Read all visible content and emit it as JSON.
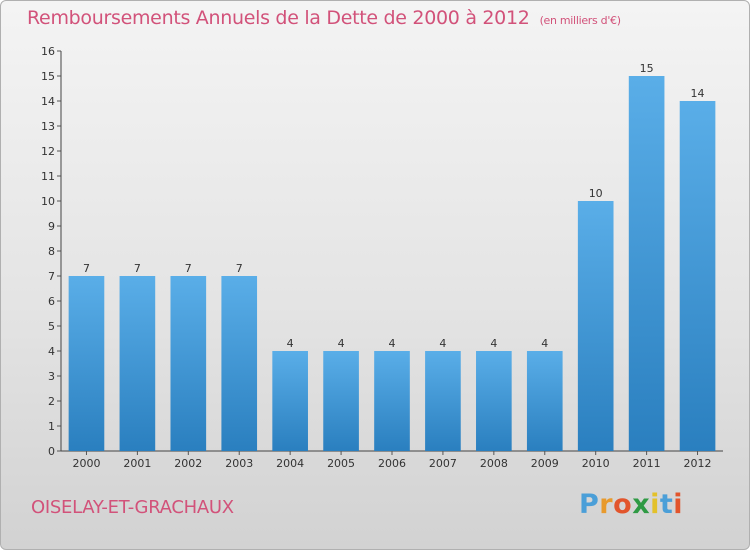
{
  "chart_data": {
    "type": "bar",
    "title": "Remboursements Annuels de la Dette de 2000 à 2012",
    "unit_note": "(en milliers d'€)",
    "categories": [
      "2000",
      "2001",
      "2002",
      "2003",
      "2004",
      "2005",
      "2006",
      "2007",
      "2008",
      "2009",
      "2010",
      "2011",
      "2012"
    ],
    "values": [
      7,
      7,
      7,
      7,
      4,
      4,
      4,
      4,
      4,
      4,
      10,
      15,
      14
    ],
    "ylim": [
      0,
      16
    ],
    "yticks": [
      0,
      1,
      2,
      3,
      4,
      5,
      6,
      7,
      8,
      9,
      10,
      11,
      12,
      13,
      14,
      15,
      16
    ],
    "grid": false,
    "colors": {
      "bar_top": "#5aaee8",
      "bar_bottom": "#2a7fbf",
      "title": "#d2527a"
    }
  },
  "commune": "OISELAY-ET-GRACHAUX",
  "brand": {
    "letters": [
      "P",
      "r",
      "o",
      "x",
      "i",
      "t",
      "i"
    ],
    "colors": [
      "#4b9fd8",
      "#e89a2c",
      "#e2552c",
      "#2f9a44",
      "#e3c12a",
      "#4b9fd8",
      "#e2552c"
    ]
  }
}
